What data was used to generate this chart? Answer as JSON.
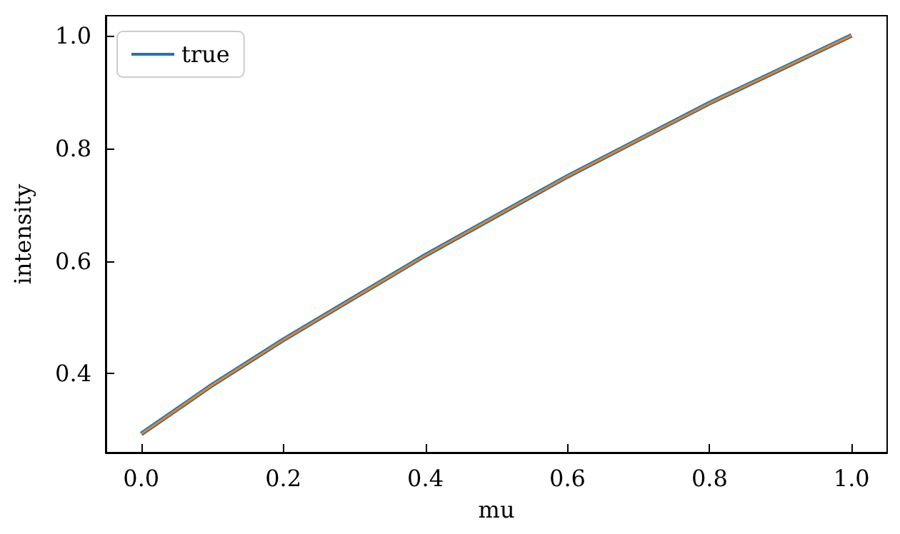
{
  "chart_data": {
    "type": "line",
    "xlabel": "mu",
    "ylabel": "intensity",
    "x": [
      0,
      0.1,
      0.2,
      0.3,
      0.4,
      0.5,
      0.6,
      0.7,
      0.8,
      0.9,
      1.0
    ],
    "series": [
      {
        "name": "true",
        "color": "#1f77b4",
        "values": [
          0.293,
          0.38,
          0.46,
          0.535,
          0.61,
          0.68,
          0.75,
          0.815,
          0.88,
          0.94,
          1.0
        ]
      },
      {
        "color": "#ff7f0e",
        "values": [
          0.293,
          0.38,
          0.46,
          0.535,
          0.61,
          0.68,
          0.75,
          0.815,
          0.88,
          0.94,
          1.0
        ]
      }
    ],
    "xlim": [
      -0.05,
      1.05
    ],
    "xticks": [
      {
        "value": 0,
        "label": "0.0"
      },
      {
        "value": 0.2,
        "label": "0.2"
      },
      {
        "value": 0.4,
        "label": "0.4"
      },
      {
        "value": 0.6,
        "label": "0.6"
      },
      {
        "value": 0.8,
        "label": "0.8"
      },
      {
        "value": 1,
        "label": "1.0"
      }
    ],
    "ylim": [
      0.26,
      1.035
    ],
    "yticks": [
      {
        "value": 0.4,
        "label": "0.4"
      },
      {
        "value": 0.6,
        "label": "0.6"
      },
      {
        "value": 0.8,
        "label": "0.8"
      },
      {
        "value": 1,
        "label": "1.0"
      }
    ],
    "grid": false,
    "legend": "top left",
    "marker": "none",
    "line_style": "solid"
  }
}
